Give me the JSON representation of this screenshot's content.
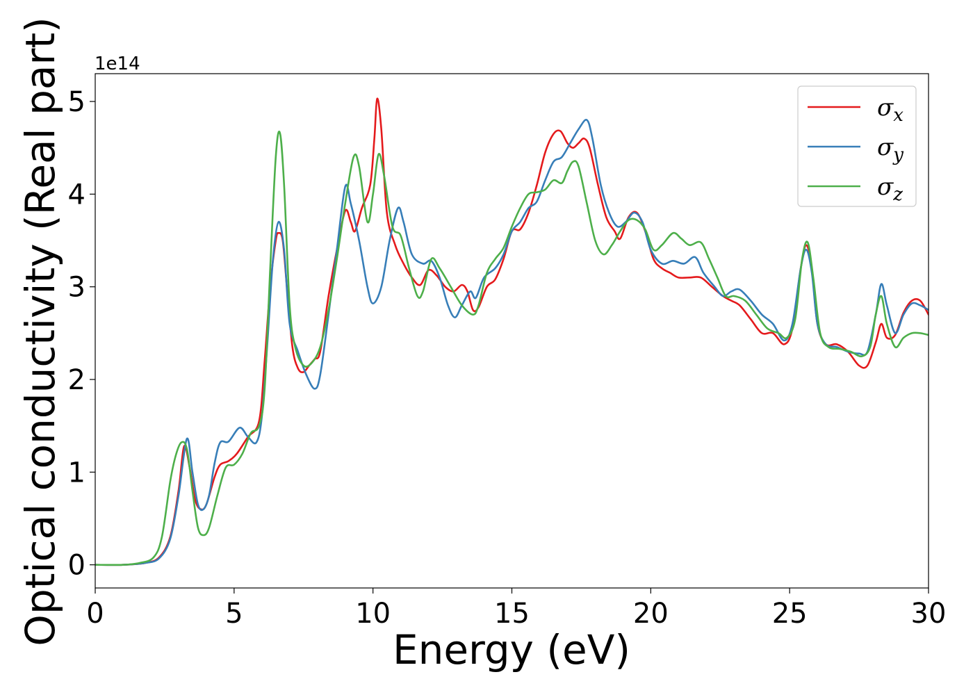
{
  "chart_data": {
    "type": "line",
    "xlabel": "Energy (eV)",
    "ylabel": "Optical conductivity (Real part)",
    "y_offset_label": "1e14",
    "xlim": [
      0,
      30
    ],
    "ylim": [
      -0.25,
      5.3
    ],
    "x_ticks": [
      0,
      5,
      10,
      15,
      20,
      25,
      30
    ],
    "y_ticks": [
      0,
      1,
      2,
      3,
      4,
      5
    ],
    "grid": false,
    "legend_position": "top-right",
    "series": [
      {
        "name": "σx",
        "legend_base": "σ",
        "legend_sub": "x",
        "color": "#e41a1c",
        "points": [
          [
            0,
            0
          ],
          [
            1,
            0
          ],
          [
            1.8,
            0.02
          ],
          [
            2.3,
            0.08
          ],
          [
            2.7,
            0.3
          ],
          [
            3.0,
            0.8
          ],
          [
            3.2,
            1.28
          ],
          [
            3.4,
            1.05
          ],
          [
            3.6,
            0.7
          ],
          [
            3.8,
            0.6
          ],
          [
            4.0,
            0.65
          ],
          [
            4.3,
            0.95
          ],
          [
            4.5,
            1.08
          ],
          [
            4.8,
            1.12
          ],
          [
            5.1,
            1.2
          ],
          [
            5.5,
            1.38
          ],
          [
            5.9,
            1.55
          ],
          [
            6.1,
            2.2
          ],
          [
            6.3,
            3.0
          ],
          [
            6.5,
            3.5
          ],
          [
            6.6,
            3.58
          ],
          [
            6.75,
            3.5
          ],
          [
            6.9,
            3.0
          ],
          [
            7.1,
            2.35
          ],
          [
            7.3,
            2.12
          ],
          [
            7.5,
            2.08
          ],
          [
            7.7,
            2.15
          ],
          [
            7.9,
            2.22
          ],
          [
            8.1,
            2.3
          ],
          [
            8.4,
            2.9
          ],
          [
            8.7,
            3.4
          ],
          [
            9.0,
            3.82
          ],
          [
            9.2,
            3.7
          ],
          [
            9.35,
            3.6
          ],
          [
            9.6,
            3.85
          ],
          [
            9.9,
            4.1
          ],
          [
            10.05,
            4.6
          ],
          [
            10.15,
            5.03
          ],
          [
            10.3,
            4.7
          ],
          [
            10.5,
            3.8
          ],
          [
            10.8,
            3.45
          ],
          [
            11.1,
            3.25
          ],
          [
            11.4,
            3.1
          ],
          [
            11.7,
            3.02
          ],
          [
            12.0,
            3.18
          ],
          [
            12.3,
            3.12
          ],
          [
            12.6,
            3.0
          ],
          [
            12.9,
            2.95
          ],
          [
            13.2,
            3.02
          ],
          [
            13.4,
            2.95
          ],
          [
            13.6,
            2.75
          ],
          [
            13.8,
            2.78
          ],
          [
            14.1,
            3.0
          ],
          [
            14.4,
            3.08
          ],
          [
            14.7,
            3.3
          ],
          [
            15.0,
            3.6
          ],
          [
            15.3,
            3.62
          ],
          [
            15.6,
            3.8
          ],
          [
            15.9,
            4.1
          ],
          [
            16.2,
            4.45
          ],
          [
            16.5,
            4.65
          ],
          [
            16.75,
            4.68
          ],
          [
            17.0,
            4.55
          ],
          [
            17.2,
            4.5
          ],
          [
            17.4,
            4.55
          ],
          [
            17.6,
            4.6
          ],
          [
            17.8,
            4.5
          ],
          [
            18.1,
            4.1
          ],
          [
            18.4,
            3.75
          ],
          [
            18.7,
            3.6
          ],
          [
            18.9,
            3.52
          ],
          [
            19.2,
            3.75
          ],
          [
            19.5,
            3.8
          ],
          [
            19.8,
            3.6
          ],
          [
            20.1,
            3.3
          ],
          [
            20.4,
            3.2
          ],
          [
            20.7,
            3.15
          ],
          [
            21.0,
            3.1
          ],
          [
            21.4,
            3.1
          ],
          [
            21.8,
            3.1
          ],
          [
            22.2,
            3.0
          ],
          [
            22.6,
            2.9
          ],
          [
            22.9,
            2.85
          ],
          [
            23.2,
            2.8
          ],
          [
            23.6,
            2.65
          ],
          [
            24.0,
            2.5
          ],
          [
            24.4,
            2.5
          ],
          [
            24.8,
            2.38
          ],
          [
            25.1,
            2.55
          ],
          [
            25.4,
            3.2
          ],
          [
            25.6,
            3.45
          ],
          [
            25.8,
            3.2
          ],
          [
            26.0,
            2.6
          ],
          [
            26.3,
            2.38
          ],
          [
            26.7,
            2.38
          ],
          [
            27.1,
            2.3
          ],
          [
            27.5,
            2.15
          ],
          [
            27.8,
            2.15
          ],
          [
            28.1,
            2.4
          ],
          [
            28.3,
            2.6
          ],
          [
            28.5,
            2.45
          ],
          [
            28.8,
            2.48
          ],
          [
            29.1,
            2.72
          ],
          [
            29.4,
            2.85
          ],
          [
            29.7,
            2.85
          ],
          [
            30.0,
            2.7
          ]
        ]
      },
      {
        "name": "σy",
        "legend_base": "σ",
        "legend_sub": "y",
        "color": "#377eb8",
        "points": [
          [
            0,
            0
          ],
          [
            1,
            0
          ],
          [
            1.8,
            0.02
          ],
          [
            2.3,
            0.07
          ],
          [
            2.7,
            0.28
          ],
          [
            3.0,
            0.75
          ],
          [
            3.3,
            1.36
          ],
          [
            3.5,
            1.0
          ],
          [
            3.7,
            0.65
          ],
          [
            3.9,
            0.6
          ],
          [
            4.1,
            0.75
          ],
          [
            4.3,
            1.1
          ],
          [
            4.5,
            1.32
          ],
          [
            4.8,
            1.33
          ],
          [
            5.2,
            1.48
          ],
          [
            5.5,
            1.38
          ],
          [
            5.8,
            1.32
          ],
          [
            6.0,
            1.6
          ],
          [
            6.2,
            2.4
          ],
          [
            6.4,
            3.3
          ],
          [
            6.6,
            3.7
          ],
          [
            6.8,
            3.4
          ],
          [
            7.0,
            2.6
          ],
          [
            7.3,
            2.3
          ],
          [
            7.6,
            2.05
          ],
          [
            7.9,
            1.9
          ],
          [
            8.1,
            2.05
          ],
          [
            8.4,
            2.7
          ],
          [
            8.7,
            3.4
          ],
          [
            9.0,
            4.08
          ],
          [
            9.2,
            3.9
          ],
          [
            9.5,
            3.5
          ],
          [
            9.8,
            3.0
          ],
          [
            10.0,
            2.82
          ],
          [
            10.3,
            3.0
          ],
          [
            10.6,
            3.5
          ],
          [
            10.9,
            3.85
          ],
          [
            11.1,
            3.7
          ],
          [
            11.4,
            3.35
          ],
          [
            11.8,
            3.25
          ],
          [
            12.1,
            3.28
          ],
          [
            12.4,
            3.1
          ],
          [
            12.7,
            2.8
          ],
          [
            12.95,
            2.67
          ],
          [
            13.2,
            2.8
          ],
          [
            13.5,
            2.95
          ],
          [
            13.7,
            2.88
          ],
          [
            14.0,
            3.1
          ],
          [
            14.4,
            3.2
          ],
          [
            14.7,
            3.35
          ],
          [
            15.0,
            3.6
          ],
          [
            15.3,
            3.7
          ],
          [
            15.6,
            3.85
          ],
          [
            15.9,
            3.92
          ],
          [
            16.2,
            4.15
          ],
          [
            16.5,
            4.35
          ],
          [
            16.8,
            4.4
          ],
          [
            17.1,
            4.55
          ],
          [
            17.4,
            4.7
          ],
          [
            17.7,
            4.8
          ],
          [
            17.9,
            4.6
          ],
          [
            18.2,
            4.1
          ],
          [
            18.5,
            3.8
          ],
          [
            18.8,
            3.65
          ],
          [
            19.1,
            3.7
          ],
          [
            19.4,
            3.8
          ],
          [
            19.7,
            3.7
          ],
          [
            20.0,
            3.4
          ],
          [
            20.4,
            3.25
          ],
          [
            20.8,
            3.28
          ],
          [
            21.2,
            3.25
          ],
          [
            21.6,
            3.32
          ],
          [
            21.9,
            3.15
          ],
          [
            22.3,
            3.0
          ],
          [
            22.6,
            2.9
          ],
          [
            22.9,
            2.95
          ],
          [
            23.2,
            2.97
          ],
          [
            23.6,
            2.85
          ],
          [
            24.0,
            2.7
          ],
          [
            24.4,
            2.6
          ],
          [
            24.8,
            2.42
          ],
          [
            25.1,
            2.6
          ],
          [
            25.4,
            3.2
          ],
          [
            25.6,
            3.4
          ],
          [
            25.8,
            3.15
          ],
          [
            26.0,
            2.6
          ],
          [
            26.3,
            2.38
          ],
          [
            26.7,
            2.35
          ],
          [
            27.1,
            2.3
          ],
          [
            27.5,
            2.28
          ],
          [
            27.8,
            2.3
          ],
          [
            28.1,
            2.7
          ],
          [
            28.3,
            3.03
          ],
          [
            28.5,
            2.8
          ],
          [
            28.8,
            2.5
          ],
          [
            29.1,
            2.7
          ],
          [
            29.4,
            2.82
          ],
          [
            29.7,
            2.8
          ],
          [
            30.0,
            2.75
          ]
        ]
      },
      {
        "name": "σz",
        "legend_base": "σ",
        "legend_sub": "z",
        "color": "#4daf4a",
        "points": [
          [
            0,
            0
          ],
          [
            1,
            0
          ],
          [
            1.6,
            0.02
          ],
          [
            2.1,
            0.08
          ],
          [
            2.4,
            0.3
          ],
          [
            2.7,
            0.9
          ],
          [
            2.9,
            1.18
          ],
          [
            3.1,
            1.32
          ],
          [
            3.3,
            1.25
          ],
          [
            3.5,
            0.8
          ],
          [
            3.7,
            0.4
          ],
          [
            3.9,
            0.32
          ],
          [
            4.1,
            0.4
          ],
          [
            4.4,
            0.75
          ],
          [
            4.7,
            1.05
          ],
          [
            5.0,
            1.08
          ],
          [
            5.3,
            1.2
          ],
          [
            5.6,
            1.42
          ],
          [
            5.9,
            1.5
          ],
          [
            6.1,
            1.9
          ],
          [
            6.3,
            3.2
          ],
          [
            6.5,
            4.4
          ],
          [
            6.65,
            4.66
          ],
          [
            6.8,
            4.1
          ],
          [
            7.0,
            2.8
          ],
          [
            7.2,
            2.35
          ],
          [
            7.5,
            2.15
          ],
          [
            7.8,
            2.18
          ],
          [
            8.1,
            2.35
          ],
          [
            8.4,
            2.75
          ],
          [
            8.7,
            3.3
          ],
          [
            9.0,
            3.9
          ],
          [
            9.3,
            4.4
          ],
          [
            9.5,
            4.3
          ],
          [
            9.8,
            3.7
          ],
          [
            10.0,
            4.0
          ],
          [
            10.2,
            4.43
          ],
          [
            10.4,
            4.2
          ],
          [
            10.7,
            3.65
          ],
          [
            11.0,
            3.55
          ],
          [
            11.3,
            3.2
          ],
          [
            11.6,
            2.9
          ],
          [
            11.8,
            2.95
          ],
          [
            12.1,
            3.3
          ],
          [
            12.4,
            3.2
          ],
          [
            12.8,
            3.0
          ],
          [
            13.2,
            2.8
          ],
          [
            13.6,
            2.7
          ],
          [
            13.8,
            2.8
          ],
          [
            14.1,
            3.15
          ],
          [
            14.4,
            3.3
          ],
          [
            14.7,
            3.42
          ],
          [
            15.0,
            3.65
          ],
          [
            15.3,
            3.85
          ],
          [
            15.6,
            4.0
          ],
          [
            15.9,
            4.02
          ],
          [
            16.2,
            4.05
          ],
          [
            16.5,
            4.15
          ],
          [
            16.8,
            4.12
          ],
          [
            17.0,
            4.25
          ],
          [
            17.2,
            4.35
          ],
          [
            17.4,
            4.3
          ],
          [
            17.7,
            3.9
          ],
          [
            18.0,
            3.5
          ],
          [
            18.3,
            3.35
          ],
          [
            18.6,
            3.45
          ],
          [
            18.9,
            3.6
          ],
          [
            19.2,
            3.72
          ],
          [
            19.5,
            3.72
          ],
          [
            19.8,
            3.62
          ],
          [
            20.1,
            3.4
          ],
          [
            20.4,
            3.45
          ],
          [
            20.8,
            3.58
          ],
          [
            21.1,
            3.52
          ],
          [
            21.4,
            3.45
          ],
          [
            21.8,
            3.48
          ],
          [
            22.1,
            3.3
          ],
          [
            22.4,
            3.1
          ],
          [
            22.7,
            2.9
          ],
          [
            23.0,
            2.9
          ],
          [
            23.4,
            2.85
          ],
          [
            23.8,
            2.7
          ],
          [
            24.2,
            2.55
          ],
          [
            24.6,
            2.5
          ],
          [
            24.9,
            2.45
          ],
          [
            25.2,
            2.65
          ],
          [
            25.45,
            3.3
          ],
          [
            25.65,
            3.48
          ],
          [
            25.85,
            3.1
          ],
          [
            26.1,
            2.5
          ],
          [
            26.4,
            2.35
          ],
          [
            26.8,
            2.33
          ],
          [
            27.2,
            2.3
          ],
          [
            27.6,
            2.25
          ],
          [
            27.9,
            2.35
          ],
          [
            28.1,
            2.7
          ],
          [
            28.3,
            2.9
          ],
          [
            28.5,
            2.6
          ],
          [
            28.8,
            2.35
          ],
          [
            29.1,
            2.45
          ],
          [
            29.4,
            2.5
          ],
          [
            29.7,
            2.5
          ],
          [
            30.0,
            2.48
          ]
        ]
      }
    ]
  }
}
